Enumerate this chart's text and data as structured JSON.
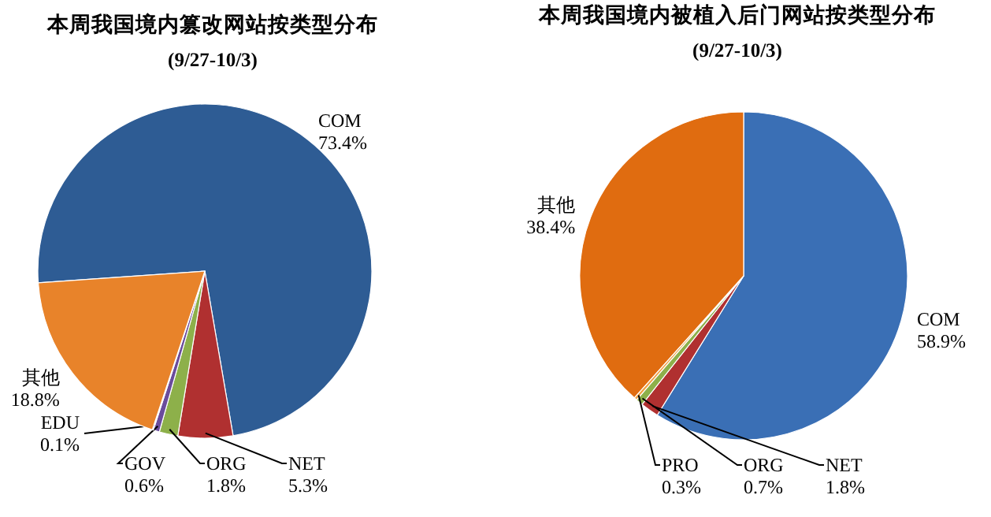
{
  "chart_data": [
    {
      "type": "pie",
      "title": "本周我国境内篡改网站按类型分布",
      "subtitle": "(9/27-10/3)",
      "categories": [
        "COM",
        "NET",
        "ORG",
        "GOV",
        "EDU",
        "其他"
      ],
      "values": [
        73.4,
        5.3,
        1.8,
        0.6,
        0.1,
        18.8
      ],
      "value_labels": [
        "73.4%",
        "5.3%",
        "1.8%",
        "0.6%",
        "0.1%",
        "18.8%"
      ],
      "colors": [
        "#2e5c94",
        "#b03030",
        "#8db04a",
        "#6a4c9c",
        "#3c78c0",
        "#e8832a"
      ]
    },
    {
      "type": "pie",
      "title": "本周我国境内被植入后门网站按类型分布",
      "subtitle": "(9/27-10/3)",
      "categories": [
        "COM",
        "NET",
        "ORG",
        "PRO",
        "其他"
      ],
      "values": [
        58.9,
        1.8,
        0.7,
        0.3,
        38.4
      ],
      "value_labels": [
        "58.9%",
        "1.8%",
        "0.7%",
        "0.3%",
        "38.4%"
      ],
      "colors": [
        "#3a6fb5",
        "#b03030",
        "#8db04a",
        "#f0a040",
        "#e06c10"
      ]
    }
  ]
}
